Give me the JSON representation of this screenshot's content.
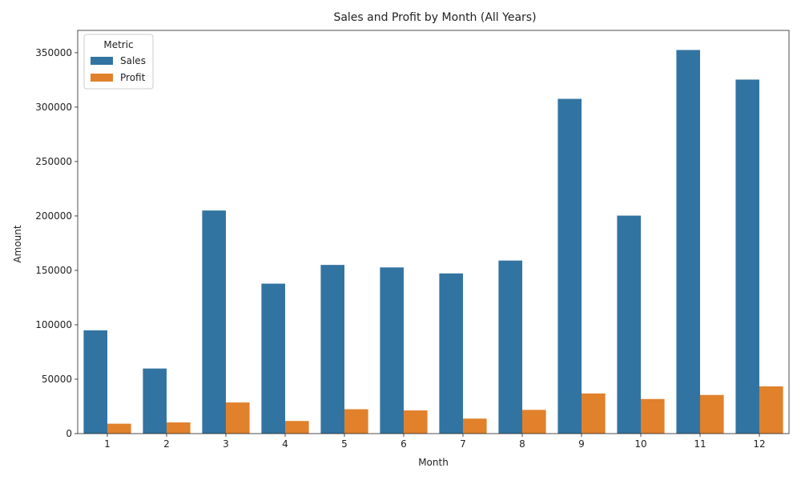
{
  "chart_data": {
    "type": "bar",
    "title": "Sales and Profit by Month (All Years)",
    "xlabel": "Month",
    "ylabel": "Amount",
    "categories": [
      "1",
      "2",
      "3",
      "4",
      "5",
      "6",
      "7",
      "8",
      "9",
      "10",
      "11",
      "12"
    ],
    "series": [
      {
        "name": "Sales",
        "color": "#3274a1",
        "values": [
          94900,
          59800,
          205000,
          137800,
          155000,
          152700,
          147200,
          159000,
          307600,
          200300,
          352500,
          325300
        ]
      },
      {
        "name": "Profit",
        "color": "#e1812c",
        "values": [
          9100,
          10300,
          28600,
          11600,
          22400,
          21300,
          13800,
          21800,
          36900,
          31800,
          35500,
          43400
        ]
      }
    ],
    "ylim": [
      0,
      370500
    ],
    "yticks": [
      0,
      50000,
      100000,
      150000,
      200000,
      250000,
      300000,
      350000
    ],
    "legend": {
      "title": "Metric",
      "placement": "top-left"
    },
    "grid": false
  }
}
